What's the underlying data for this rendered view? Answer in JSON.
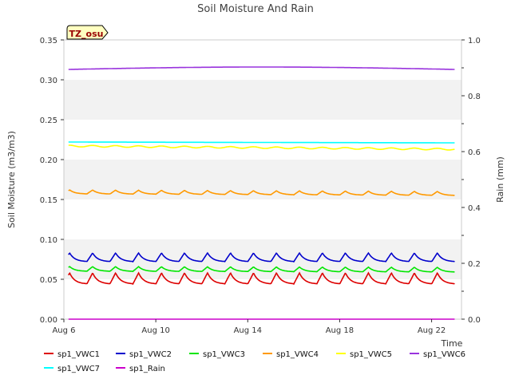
{
  "chart_data": {
    "type": "line",
    "title": "Soil Moisture And Rain",
    "site_badge": "TZ_osu",
    "xlabel": "Time",
    "ylabel_left": "Soil Moisture (m3/m3)",
    "ylabel_right": "Rain (mm)",
    "x_range_days": [
      6,
      23.3
    ],
    "x_ticks": [
      {
        "day": 6,
        "label": "Aug 6"
      },
      {
        "day": 10,
        "label": "Aug 10"
      },
      {
        "day": 14,
        "label": "Aug 14"
      },
      {
        "day": 18,
        "label": "Aug 18"
      },
      {
        "day": 22,
        "label": "Aug 22"
      }
    ],
    "ylim_left": [
      0,
      0.35
    ],
    "yticks_left": [
      "0.00",
      "0.05",
      "0.10",
      "0.15",
      "0.20",
      "0.25",
      "0.30",
      "0.35"
    ],
    "ylim_right": [
      0,
      1.0
    ],
    "yticks_right": [
      "0.0",
      "0.2",
      "0.4",
      "0.6",
      "0.8",
      "1.0"
    ],
    "grid": "horizontal bands",
    "legend_position": "bottom",
    "series": [
      {
        "name": "sp1_VWC1",
        "color": "#dd0000",
        "axis": "left",
        "base": 0.044,
        "end": 0.044,
        "amp": 0.014,
        "daily": true
      },
      {
        "name": "sp1_VWC2",
        "color": "#0000cc",
        "axis": "left",
        "base": 0.072,
        "end": 0.072,
        "amp": 0.011,
        "daily": true
      },
      {
        "name": "sp1_VWC3",
        "color": "#00e600",
        "axis": "left",
        "base": 0.06,
        "end": 0.059,
        "amp": 0.006,
        "daily": true
      },
      {
        "name": "sp1_VWC4",
        "color": "#ff9900",
        "axis": "left",
        "base": 0.157,
        "end": 0.155,
        "amp": 0.005,
        "daily": true
      },
      {
        "name": "sp1_VWC5",
        "color": "#ffff00",
        "axis": "left",
        "base": 0.217,
        "end": 0.213,
        "amp": 0.001,
        "daily": false
      },
      {
        "name": "sp1_VWC6",
        "color": "#9933dd",
        "axis": "left",
        "base": 0.313,
        "end": 0.313,
        "amp": 0.0,
        "daily": false,
        "mid": 0.316
      },
      {
        "name": "sp1_VWC7",
        "color": "#00ffff",
        "axis": "left",
        "base": 0.222,
        "end": 0.221,
        "amp": 0.0,
        "daily": false
      },
      {
        "name": "sp1_Rain",
        "color": "#cc00cc",
        "axis": "right",
        "base": 0.0,
        "end": 0.0,
        "amp": 0.0,
        "daily": false
      }
    ]
  }
}
